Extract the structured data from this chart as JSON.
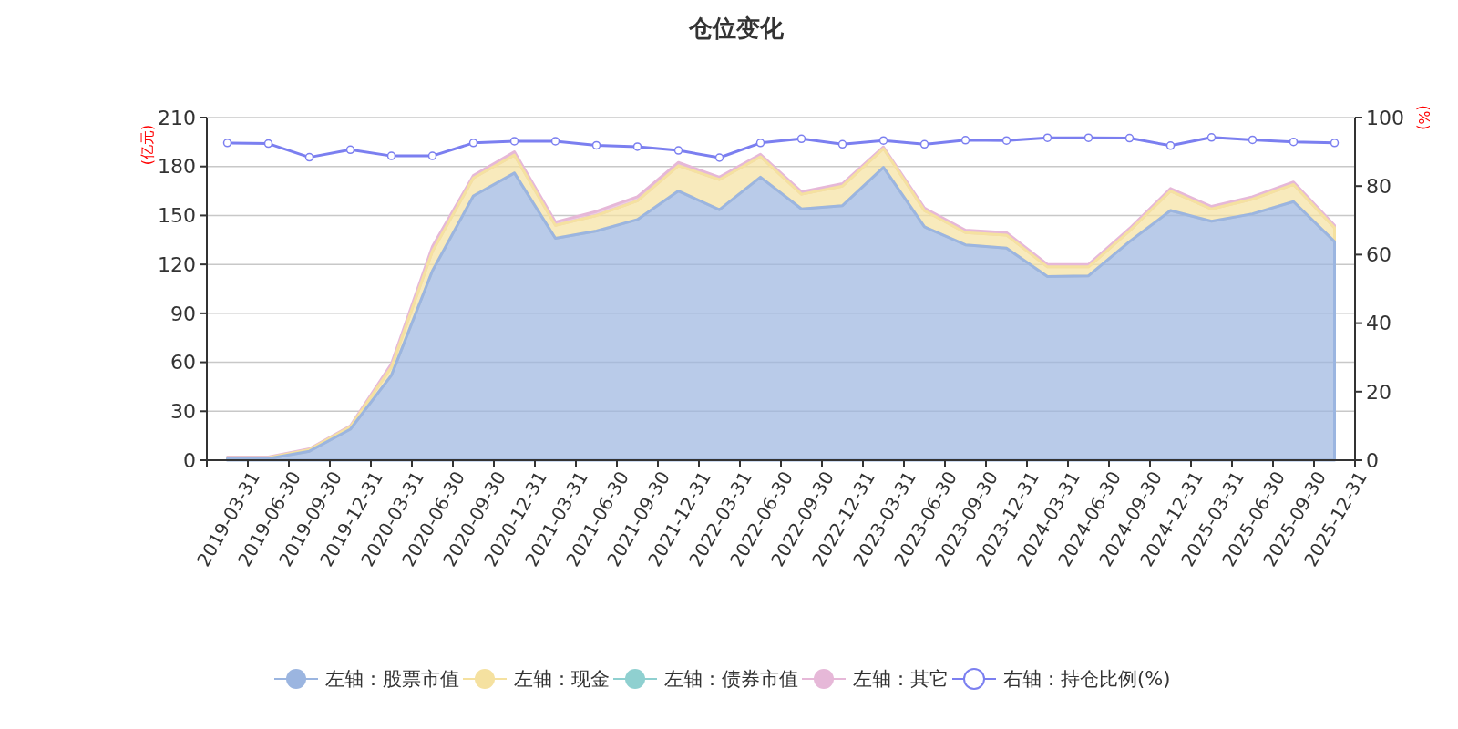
{
  "chart_data": {
    "type": "area",
    "title": "仓位变化",
    "ylabel": "(亿元)",
    "y2label": "(%)",
    "categories": [
      "2019-03-31",
      "2019-06-30",
      "2019-09-30",
      "2019-12-31",
      "2020-03-31",
      "2020-06-30",
      "2020-09-30",
      "2020-12-31",
      "2021-03-31",
      "2021-06-30",
      "2021-09-30",
      "2021-12-31",
      "2022-03-31",
      "2022-06-30",
      "2022-09-30",
      "2022-12-31",
      "2023-03-31",
      "2023-06-30",
      "2023-09-30",
      "2023-12-31",
      "2024-03-31",
      "2024-06-30",
      "2024-09-30",
      "2024-12-31",
      "2025-03-31",
      "2025-06-30",
      "2025-09-30",
      "2025-12-31"
    ],
    "stacked": true,
    "ylim": [
      0,
      210
    ],
    "yticks": [
      0,
      30,
      60,
      90,
      120,
      150,
      180,
      210
    ],
    "y2lim": [
      0,
      100
    ],
    "y2ticks": [
      0,
      20,
      40,
      60,
      80,
      100
    ],
    "grid": "y",
    "legend": "bottom",
    "series": [
      {
        "name": "左轴：股票市值",
        "color": "#9bb5e0",
        "values": [
          1,
          1,
          5.5,
          19,
          52,
          116,
          162,
          176,
          136,
          140.5,
          147.5,
          165,
          153.5,
          173.5,
          154,
          156,
          179.5,
          143,
          132,
          130,
          112.5,
          113,
          134,
          153,
          146.5,
          151,
          158.5,
          134
        ]
      },
      {
        "name": "左轴：现金",
        "color": "#f5e1a0",
        "values": [
          0.5,
          0.5,
          1,
          1.5,
          5,
          12,
          11,
          11,
          8,
          9.5,
          11.5,
          15.5,
          18.5,
          12.5,
          9,
          12,
          11.5,
          10,
          7.5,
          8,
          6,
          5.5,
          6.5,
          12,
          7.5,
          9,
          10.5,
          8.5
        ]
      },
      {
        "name": "左轴：债券市值",
        "color": "#8fd0d0",
        "values": [
          null,
          null,
          null,
          null,
          null,
          null,
          null,
          null,
          null,
          null,
          null,
          null,
          null,
          null,
          null,
          null,
          null,
          null,
          null,
          null,
          null,
          null,
          null,
          null,
          null,
          null,
          null,
          null
        ]
      },
      {
        "name": "左轴：其它",
        "color": "#e6b8d8",
        "values": [
          0.5,
          0.5,
          0.5,
          0.5,
          2,
          3,
          1.5,
          2,
          2,
          2.5,
          2.5,
          2,
          1.5,
          1.5,
          1.5,
          1.5,
          1,
          1.5,
          1.5,
          1.5,
          1.5,
          1.5,
          1.5,
          1.5,
          1.5,
          1.5,
          1.5,
          1.5
        ]
      },
      {
        "name": "右轴：持仓比例(%)",
        "color": "#7b7ff0",
        "type": "line",
        "axis": "y2",
        "marker": "circle",
        "values": [
          92.6,
          92.4,
          88.4,
          90.6,
          88.8,
          88.8,
          92.6,
          93.1,
          93.1,
          91.9,
          91.5,
          90.4,
          88.3,
          92.6,
          93.8,
          92.2,
          93.3,
          92.2,
          93.4,
          93.3,
          94.1,
          94.1,
          94.0,
          91.8,
          94.2,
          93.5,
          92.9,
          92.6
        ]
      }
    ]
  }
}
